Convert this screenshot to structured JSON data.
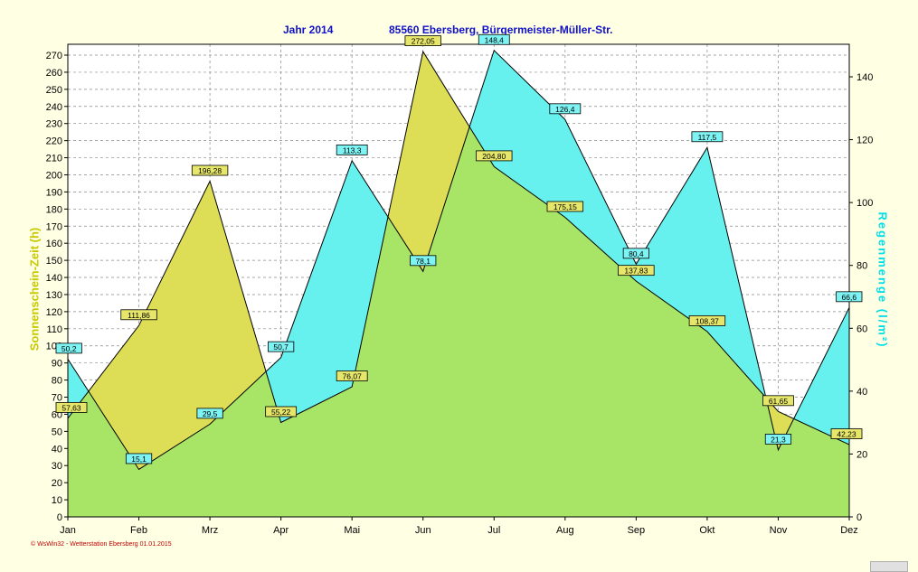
{
  "title_left": "Jahr  2014",
  "title_right": "85560 Ebersberg, Bürgermeister-Müller-Str.",
  "footer": "© WsWin32  -  Wetterstation Ebersberg   01.01.2015",
  "chart_data": {
    "type": "area",
    "categories": [
      "Jan",
      "Feb",
      "Mrz",
      "Apr",
      "Mai",
      "Jun",
      "Jul",
      "Aug",
      "Sep",
      "Okt",
      "Nov",
      "Dez"
    ],
    "series": [
      {
        "axis": "left",
        "values": [
          57.63,
          111.86,
          196.28,
          55.22,
          76.07,
          272.05,
          204.8,
          175.15,
          137.83,
          108.37,
          61.65,
          42.23
        ],
        "labels": [
          "57,63",
          "111,86",
          "196,28",
          "55,22",
          "76,07",
          "272,05",
          "204,80",
          "175,15",
          "137,83",
          "108,37",
          "61,65",
          "42,23"
        ],
        "color": "#dede56"
      },
      {
        "axis": "right",
        "values": [
          50.2,
          15.1,
          29.5,
          50.7,
          113.3,
          78.1,
          148.4,
          126.4,
          80.4,
          117.5,
          21.3,
          66.6
        ],
        "labels": [
          "50,2",
          "15,1",
          "29,5",
          "50,7",
          "113,3",
          "78,1",
          "148,4",
          "126,4",
          "80,4",
          "117,5",
          "21,3",
          "66,6"
        ],
        "color": "#66f0ee"
      }
    ],
    "y_left": {
      "label": "Sonnenschein-Zeit  (h)",
      "range": [
        0,
        280
      ],
      "ticks": [
        0,
        10,
        20,
        30,
        40,
        50,
        60,
        70,
        80,
        90,
        100,
        110,
        120,
        130,
        140,
        150,
        160,
        170,
        180,
        190,
        200,
        210,
        220,
        230,
        240,
        250,
        260,
        270
      ]
    },
    "y_right": {
      "label": "Regenmenge  (l/m²)",
      "range": [
        0,
        150
      ],
      "ticks": [
        0,
        20,
        40,
        60,
        80,
        100,
        120,
        140
      ]
    },
    "overlap_color": "#a8e466",
    "grid": true
  }
}
